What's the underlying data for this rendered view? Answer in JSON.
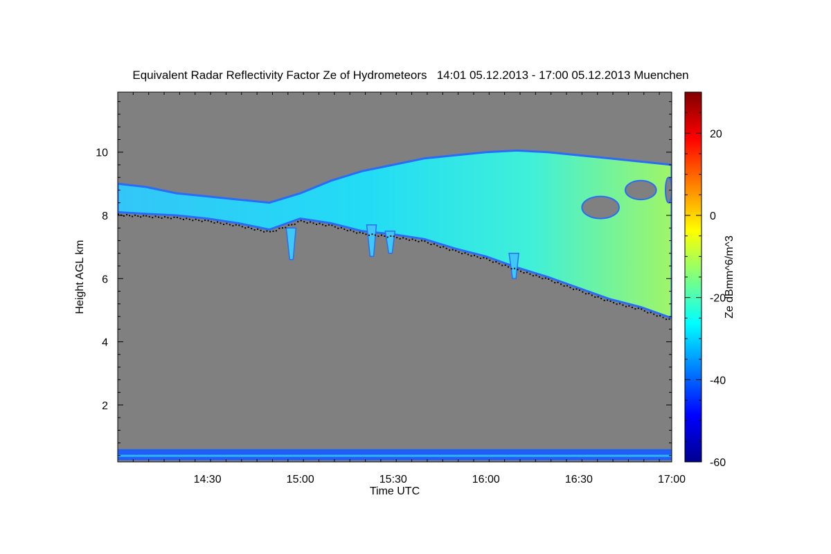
{
  "chart_data": {
    "type": "heatmap",
    "title": "Equivalent Radar Reflectivity Factor Ze of Hydrometeors   14:01 05.12.2013 - 17:00 05.12.2013 Muenchen",
    "xlabel": "Time UTC",
    "ylabel": "Height AGL km",
    "colorbar_label": "Ze dBmm^6/m^3",
    "xlim": [
      "14:01",
      "17:00"
    ],
    "ylim": [
      0.2,
      11.9
    ],
    "x_ticks": [
      "14:30",
      "15:00",
      "15:30",
      "16:00",
      "16:30",
      "17:00"
    ],
    "y_ticks": [
      2,
      4,
      6,
      8,
      10
    ],
    "colorbar_range": [
      -60,
      30
    ],
    "colorbar_ticks": [
      -60,
      -40,
      -20,
      0,
      20
    ],
    "colormap": "jet",
    "background_color": "#808080",
    "echo_top_km": [
      {
        "t": "14:01",
        "km": 9.0
      },
      {
        "t": "14:10",
        "km": 8.9
      },
      {
        "t": "14:20",
        "km": 8.7
      },
      {
        "t": "14:30",
        "km": 8.6
      },
      {
        "t": "14:40",
        "km": 8.5
      },
      {
        "t": "14:50",
        "km": 8.4
      },
      {
        "t": "15:00",
        "km": 8.7
      },
      {
        "t": "15:10",
        "km": 9.1
      },
      {
        "t": "15:20",
        "km": 9.4
      },
      {
        "t": "15:30",
        "km": 9.6
      },
      {
        "t": "15:40",
        "km": 9.8
      },
      {
        "t": "15:50",
        "km": 9.9
      },
      {
        "t": "16:00",
        "km": 10.0
      },
      {
        "t": "16:10",
        "km": 10.05
      },
      {
        "t": "16:20",
        "km": 10.0
      },
      {
        "t": "16:30",
        "km": 9.9
      },
      {
        "t": "16:40",
        "km": 9.8
      },
      {
        "t": "16:50",
        "km": 9.7
      },
      {
        "t": "17:00",
        "km": 9.6
      }
    ],
    "cloud_base_km": [
      {
        "t": "14:01",
        "km": 8.1
      },
      {
        "t": "14:10",
        "km": 8.05
      },
      {
        "t": "14:20",
        "km": 8.0
      },
      {
        "t": "14:30",
        "km": 7.9
      },
      {
        "t": "14:40",
        "km": 7.75
      },
      {
        "t": "14:50",
        "km": 7.55
      },
      {
        "t": "15:00",
        "km": 7.9
      },
      {
        "t": "15:10",
        "km": 7.75
      },
      {
        "t": "15:20",
        "km": 7.5
      },
      {
        "t": "15:30",
        "km": 7.4
      },
      {
        "t": "15:40",
        "km": 7.25
      },
      {
        "t": "15:50",
        "km": 6.95
      },
      {
        "t": "16:00",
        "km": 6.7
      },
      {
        "t": "16:10",
        "km": 6.35
      },
      {
        "t": "16:20",
        "km": 6.05
      },
      {
        "t": "16:30",
        "km": 5.7
      },
      {
        "t": "16:40",
        "km": 5.35
      },
      {
        "t": "16:50",
        "km": 5.1
      },
      {
        "t": "17:00",
        "km": 4.75
      }
    ],
    "fallstreaks": [
      {
        "t": "14:57",
        "top_km": 7.6,
        "bottom_km": 6.6
      },
      {
        "t": "15:23",
        "top_km": 7.7,
        "bottom_km": 6.7
      },
      {
        "t": "15:29",
        "top_km": 7.5,
        "bottom_km": 6.8
      },
      {
        "t": "16:09",
        "top_km": 6.8,
        "bottom_km": 6.0
      }
    ],
    "clear_gaps": [
      {
        "t_start": "16:31",
        "t_end": "16:43",
        "top_km": 8.6,
        "bottom_km": 7.9
      },
      {
        "t_start": "16:45",
        "t_end": "16:55",
        "top_km": 9.1,
        "bottom_km": 8.5
      },
      {
        "t_start": "16:58",
        "t_end": "17:00",
        "top_km": 9.2,
        "bottom_km": 8.4
      }
    ],
    "ground_clutter_km": [
      0.25,
      0.6
    ]
  }
}
